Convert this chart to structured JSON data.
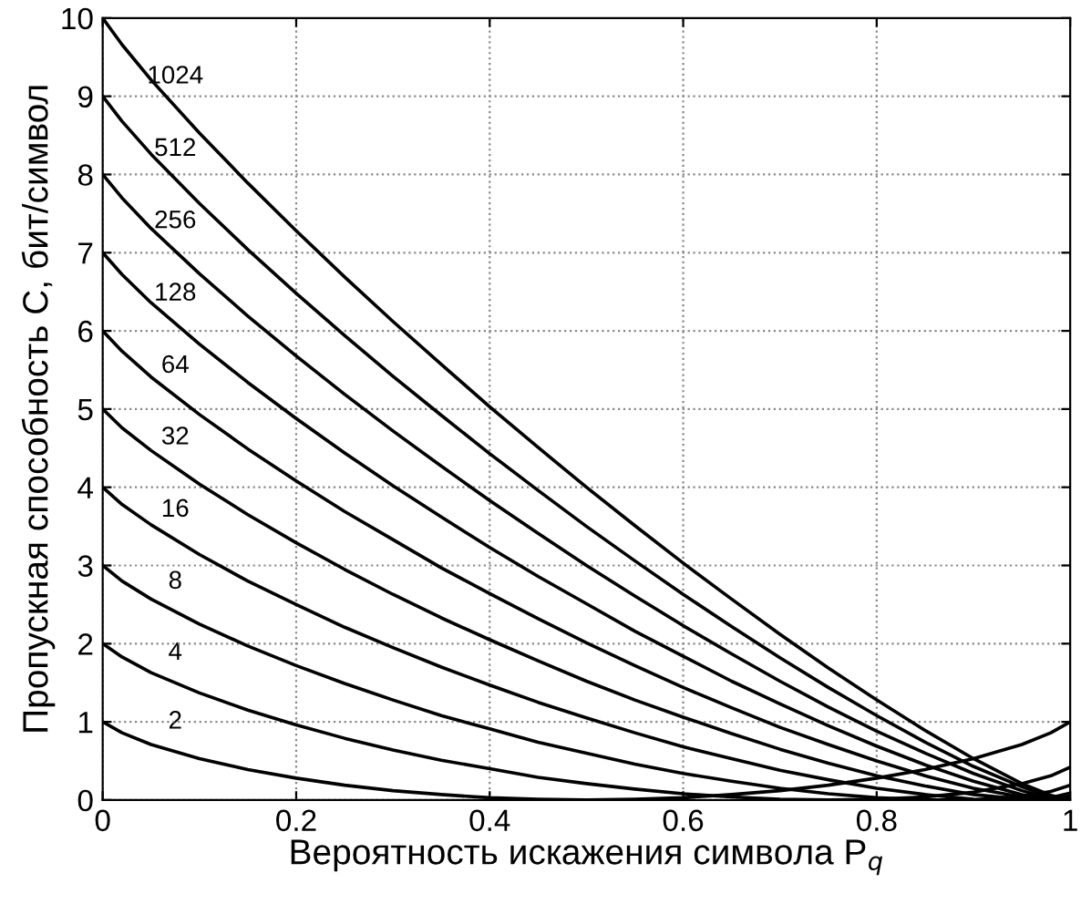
{
  "chart_data": {
    "type": "line",
    "xlabel": "Вероятность искажения символа P$_{q}$",
    "ylabel": "Пропускная способность C, бит/символ",
    "x": [
      0,
      0.02,
      0.05,
      0.1,
      0.15,
      0.2,
      0.25,
      0.3,
      0.35,
      0.4,
      0.45,
      0.5,
      0.55,
      0.6,
      0.65,
      0.7,
      0.75,
      0.8,
      0.85,
      0.9,
      0.95,
      0.98,
      1
    ],
    "xlim": [
      0,
      1
    ],
    "xticks": [
      0,
      0.2,
      0.4,
      0.6,
      0.8,
      1
    ],
    "ylim": [
      0,
      10
    ],
    "yticks": [
      0,
      1,
      2,
      3,
      4,
      5,
      6,
      7,
      8,
      9,
      10
    ],
    "grid": true,
    "legend": false,
    "marker": "none",
    "line_style": "solid",
    "series": [
      {
        "name": "2",
        "color": "#000000",
        "values": [
          1,
          0.86,
          0.71,
          0.53,
          0.39,
          0.28,
          0.19,
          0.12,
          0.07,
          0.03,
          0.01,
          0,
          0.01,
          0.03,
          0.07,
          0.12,
          0.19,
          0.28,
          0.39,
          0.53,
          0.71,
          0.86,
          1
        ]
      },
      {
        "name": "4",
        "color": "#000000",
        "values": [
          2,
          1.83,
          1.63,
          1.37,
          1.15,
          0.96,
          0.79,
          0.64,
          0.51,
          0.4,
          0.29,
          0.21,
          0.14,
          0.08,
          0.04,
          0.01,
          0,
          0.01,
          0.04,
          0.1,
          0.21,
          0.31,
          0.42
        ]
      },
      {
        "name": "8",
        "color": "#000000",
        "values": [
          3,
          2.8,
          2.57,
          2.25,
          1.97,
          1.72,
          1.49,
          1.28,
          1.08,
          0.91,
          0.74,
          0.6,
          0.46,
          0.34,
          0.24,
          0.15,
          0.08,
          0.03,
          0,
          0,
          0.05,
          0.11,
          0.19
        ]
      },
      {
        "name": "16",
        "color": "#000000",
        "values": [
          4,
          3.78,
          3.52,
          3.14,
          2.8,
          2.5,
          2.21,
          1.95,
          1.7,
          1.47,
          1.25,
          1.05,
          0.86,
          0.68,
          0.53,
          0.38,
          0.26,
          0.15,
          0.07,
          0.01,
          0,
          0.03,
          0.09
        ]
      },
      {
        "name": "32",
        "color": "#000000",
        "values": [
          5,
          4.76,
          4.47,
          4.04,
          3.65,
          3.29,
          2.95,
          2.63,
          2.33,
          2.05,
          1.78,
          1.52,
          1.28,
          1.06,
          0.85,
          0.65,
          0.47,
          0.31,
          0.18,
          0.07,
          0.01,
          0,
          0.05
        ]
      },
      {
        "name": "64",
        "color": "#000000",
        "values": [
          6,
          5.74,
          5.41,
          4.93,
          4.49,
          4.08,
          3.69,
          3.33,
          2.97,
          2.64,
          2.32,
          2.01,
          1.72,
          1.44,
          1.18,
          0.93,
          0.71,
          0.5,
          0.31,
          0.15,
          0.04,
          0,
          0.02
        ]
      },
      {
        "name": "128",
        "color": "#000000",
        "values": [
          7,
          6.72,
          6.36,
          5.83,
          5.34,
          4.88,
          4.44,
          4.02,
          3.62,
          3.23,
          2.86,
          2.51,
          2.16,
          1.84,
          1.52,
          1.23,
          0.95,
          0.69,
          0.45,
          0.24,
          0.07,
          0.01,
          0.01
        ]
      },
      {
        "name": "256",
        "color": "#000000",
        "values": [
          8,
          7.7,
          7.31,
          6.73,
          6.19,
          5.68,
          5.19,
          4.72,
          4.27,
          3.83,
          3.41,
          3,
          2.61,
          2.23,
          1.87,
          1.52,
          1.19,
          0.88,
          0.6,
          0.34,
          0.12,
          0.02,
          0.01
        ]
      },
      {
        "name": "512",
        "color": "#000000",
        "values": [
          9,
          8.68,
          8.26,
          7.63,
          7.04,
          6.48,
          5.94,
          5.42,
          4.92,
          4.43,
          3.96,
          3.5,
          3.06,
          2.63,
          2.22,
          1.82,
          1.44,
          1.08,
          0.74,
          0.43,
          0.17,
          0.04,
          0
        ]
      },
      {
        "name": "1024",
        "color": "#000000",
        "values": [
          10,
          9.66,
          9.21,
          8.53,
          7.89,
          7.28,
          6.69,
          6.12,
          5.57,
          5.03,
          4.51,
          4,
          3.51,
          3.03,
          2.57,
          2.12,
          1.69,
          1.28,
          0.89,
          0.53,
          0.21,
          0.06,
          0
        ]
      }
    ]
  }
}
